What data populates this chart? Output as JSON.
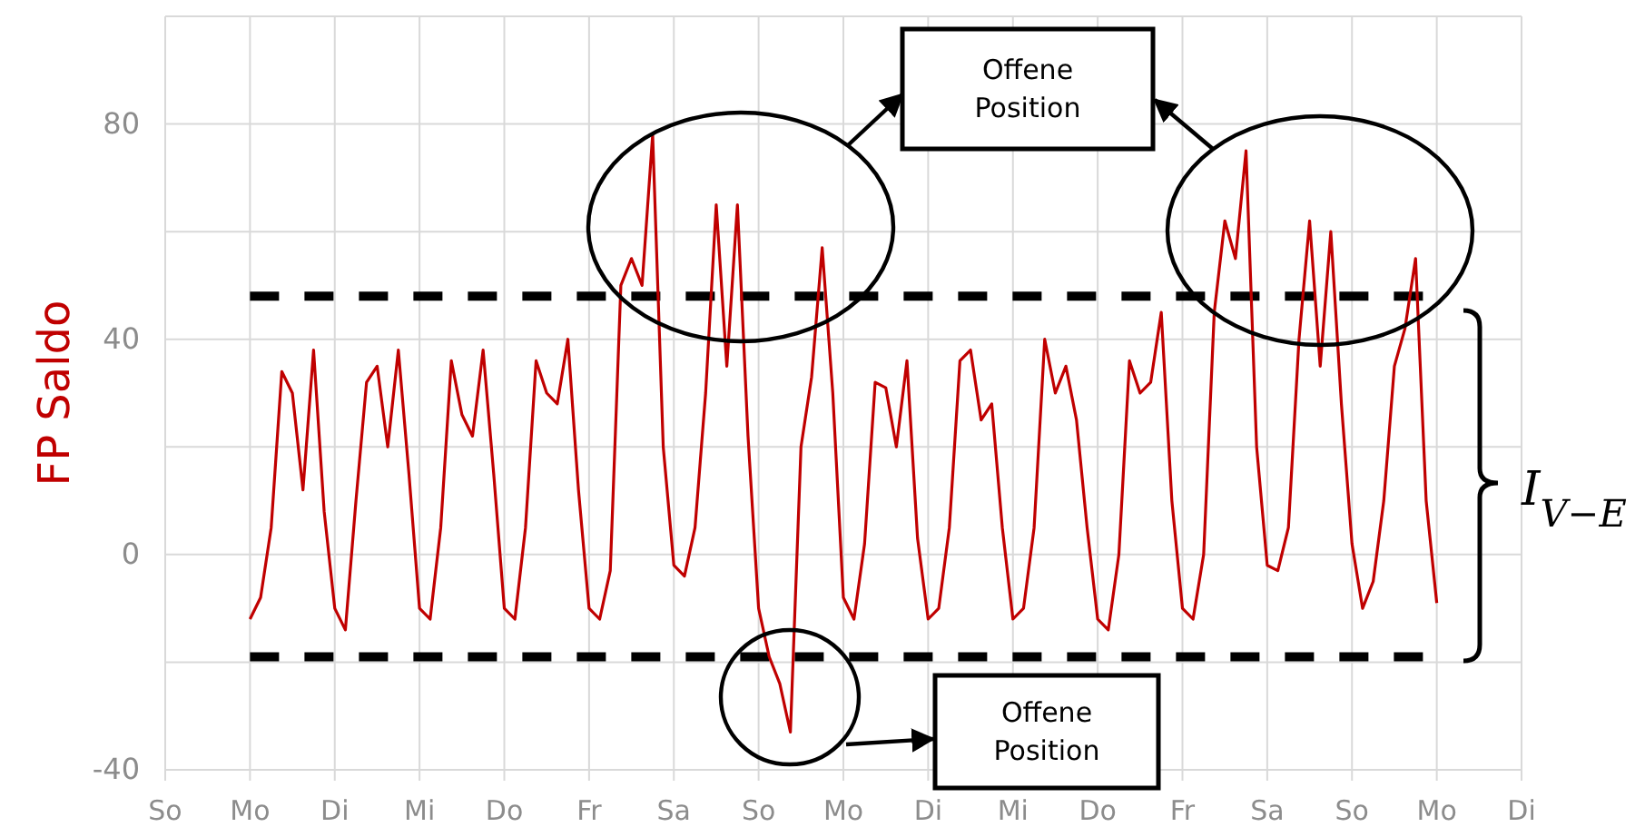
{
  "chart_data": {
    "type": "line",
    "ylabel": "FP Saldo",
    "categories": [
      "So",
      null,
      null,
      null,
      null,
      null,
      null,
      null,
      "Mo",
      null,
      null,
      null,
      null,
      null,
      null,
      null,
      "Di",
      null,
      null,
      null,
      null,
      null,
      null,
      null,
      "Mi",
      null,
      null,
      null,
      null,
      null,
      null,
      null,
      "Do",
      null,
      null,
      null,
      null,
      null,
      null,
      null,
      "Fr",
      null,
      null,
      null,
      null,
      null,
      null,
      null,
      "Sa",
      null,
      null,
      null,
      null,
      null,
      null,
      null,
      "So",
      null,
      null,
      null,
      null,
      null,
      null,
      null,
      "Mo",
      null,
      null,
      null,
      null,
      null,
      null,
      null,
      "Di",
      null,
      null,
      null,
      null,
      null,
      null,
      null,
      "Mi",
      null,
      null,
      null,
      null,
      null,
      null,
      null,
      "Do",
      null,
      null,
      null,
      null,
      null,
      null,
      null,
      "Fr",
      null,
      null,
      null,
      null,
      null,
      null,
      null,
      "Sa",
      null,
      null,
      null,
      null,
      null,
      null,
      null,
      "So",
      null,
      null,
      null,
      null,
      null,
      null,
      null,
      "Mo",
      null,
      null,
      null,
      null,
      null,
      null,
      null,
      "Di"
    ],
    "ylim": [
      -40,
      100
    ],
    "yticks": [
      -40,
      {
        "value": -20,
        "label": null
      },
      0,
      {
        "value": 20,
        "label": null
      },
      40,
      {
        "value": 60,
        "label": null
      },
      80,
      {
        "value": 100,
        "label": null
      }
    ],
    "grid": true,
    "line_style": "solid",
    "series": [
      {
        "color": "#c00000",
        "values": [
          null,
          null,
          null,
          null,
          null,
          null,
          null,
          null,
          -12,
          -8,
          5,
          34,
          30,
          12,
          38,
          8,
          -10,
          -14,
          10,
          32,
          35,
          20,
          38,
          15,
          -10,
          -12,
          5,
          36,
          26,
          22,
          38,
          15,
          -10,
          -12,
          5,
          36,
          30,
          28,
          40,
          12,
          -10,
          -12,
          -3,
          50,
          55,
          50,
          78,
          20,
          -2,
          -4,
          5,
          30,
          65,
          35,
          65,
          22,
          -10,
          -19,
          -24,
          -33,
          20,
          33,
          57,
          30,
          -8,
          -12,
          2,
          32,
          31,
          20,
          36,
          3,
          -12,
          -10,
          5,
          36,
          38,
          25,
          28,
          5,
          -12,
          -10,
          5,
          40,
          30,
          35,
          25,
          5,
          -12,
          -14,
          0,
          36,
          30,
          32,
          45,
          10,
          -10,
          -12,
          0,
          45,
          62,
          55,
          75,
          20,
          -2,
          -3,
          5,
          40,
          62,
          35,
          60,
          28,
          2,
          -10,
          -5,
          10,
          35,
          42,
          55,
          10,
          -9,
          null,
          null,
          null,
          null,
          null,
          null,
          null,
          null
        ]
      }
    ],
    "ref_lines": [
      {
        "axis": "y",
        "value": 48,
        "line_style": "dashed",
        "color": "#000000"
      },
      {
        "axis": "y",
        "value": -19,
        "line_style": "dashed",
        "color": "#000000"
      }
    ],
    "annotations": [
      "Offene Position",
      "Offene Position",
      "I$_{V−E}$"
    ]
  }
}
